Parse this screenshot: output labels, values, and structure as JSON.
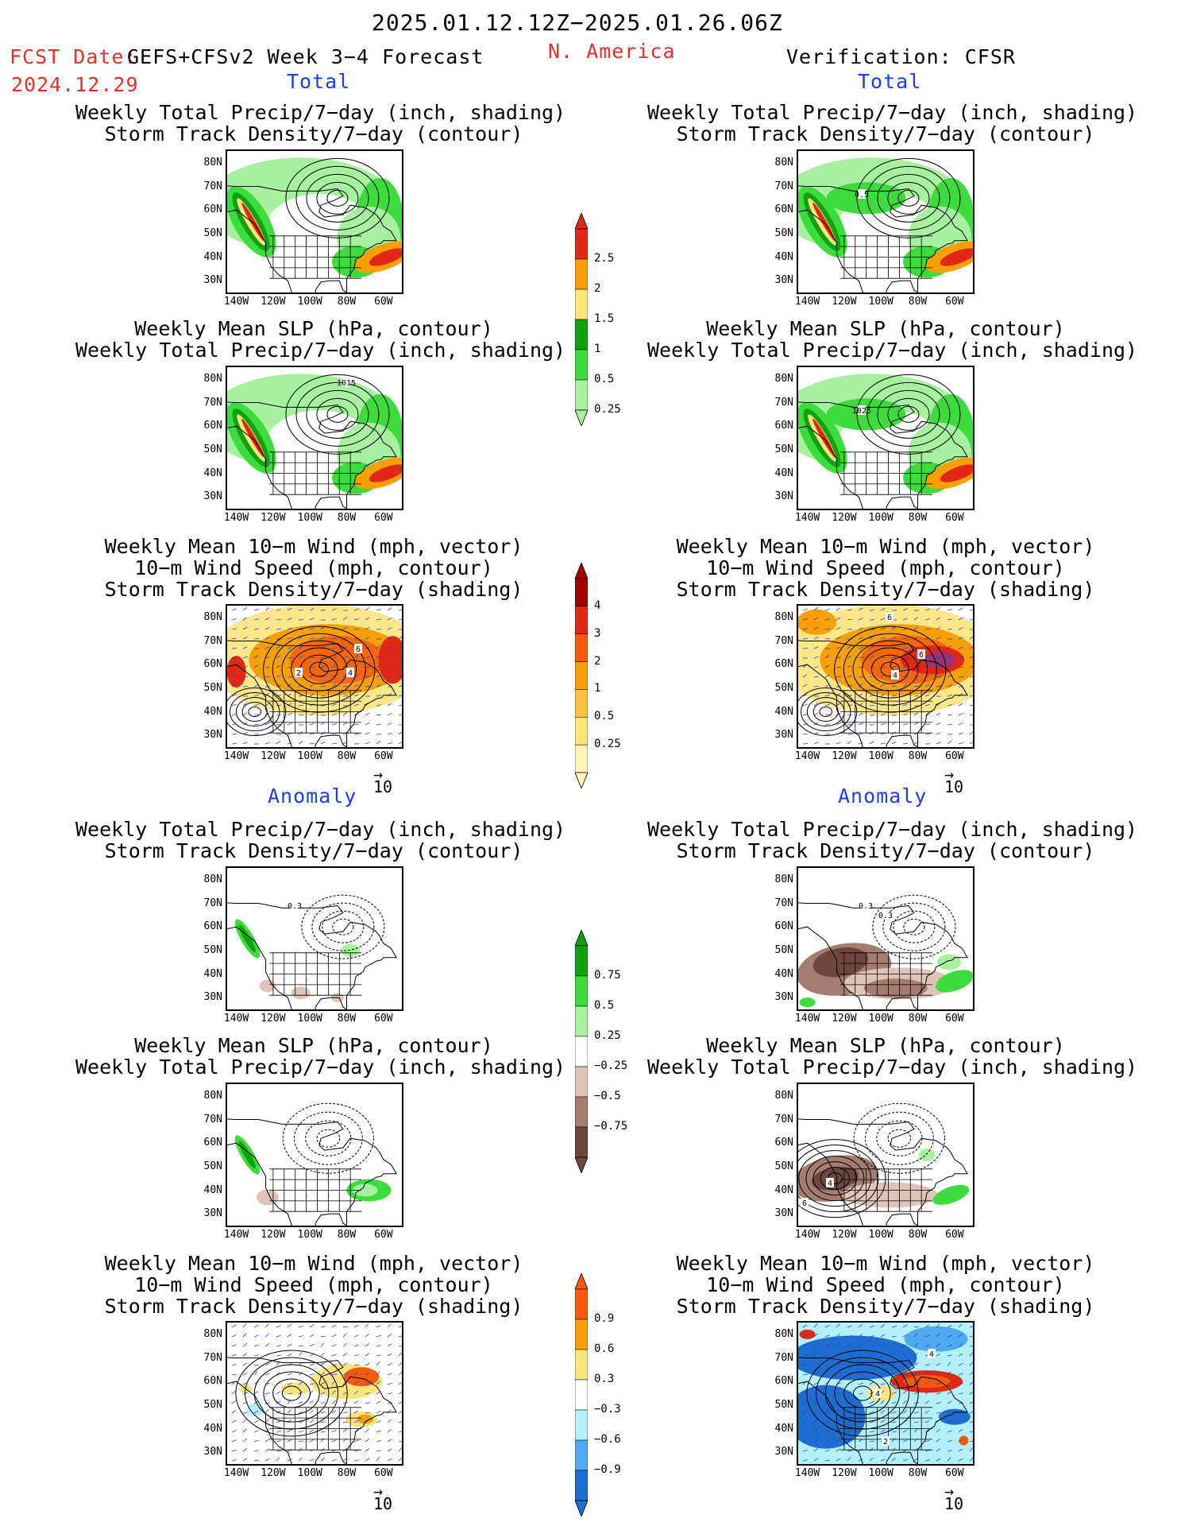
{
  "header": {
    "date_range": "2025.01.12.12Z−2025.01.26.06Z",
    "fcst_label": "FCST Date:",
    "model": "GEFS+CFSv2 Week 3−4 Forecast",
    "region": "N. America",
    "verification": "Verification: CFSR",
    "fcst_date": "2024.12.29"
  },
  "sections": {
    "total": "Total",
    "anomaly": "Anomaly"
  },
  "titles": {
    "precip_storm": [
      "Weekly Total Precip/7−day (inch, shading)",
      "Storm Track Density/7−day (contour)"
    ],
    "slp_precip": [
      "Weekly Mean SLP (hPa, contour)",
      "Weekly Total Precip/7−day (inch, shading)"
    ],
    "wind": [
      "Weekly Mean 10−m Wind (mph, vector)",
      "10−m Wind Speed (mph, contour)",
      "Storm Track Density/7−day (shading)"
    ]
  },
  "axes": {
    "lat": [
      "80N",
      "70N",
      "60N",
      "50N",
      "40N",
      "30N"
    ],
    "lon": [
      "140W",
      "120W",
      "100W",
      "80W",
      "60W"
    ]
  },
  "vector_ref": "10",
  "contour_labels": {
    "verif_total_precip": "0.5",
    "fcst_total_slp": "1015",
    "verif_total_slp": "1025",
    "fcst_total_wind": [
      "6",
      "2",
      "4"
    ],
    "verif_total_wind": [
      "6",
      "6",
      "4"
    ],
    "fcst_anom_precip": "0.3",
    "verif_anom_precip": [
      "0.3",
      "0.3"
    ],
    "verif_anom_slp": [
      "4",
      "6"
    ],
    "verif_anom_wind": [
      "4",
      "4",
      "2"
    ]
  },
  "colorbars": {
    "precip_total": {
      "labels": [
        "2.5",
        "2",
        "1.5",
        "1",
        "0.5",
        "0.25"
      ],
      "colors": [
        "#e02814",
        "#f8a000",
        "#fae47c",
        "#10a010",
        "#3cdc3c",
        "#a6f0a0"
      ]
    },
    "storm_total": {
      "labels": [
        "4",
        "3",
        "2",
        "1",
        "0.5",
        "0.25"
      ],
      "colors": [
        "#a00000",
        "#e02814",
        "#f85a0c",
        "#f8a000",
        "#f8c03c",
        "#fae47c",
        "#fff5b8"
      ]
    },
    "precip_anom": {
      "labels": [
        "0.75",
        "0.5",
        "0.25",
        "−0.25",
        "−0.5",
        "−0.75"
      ],
      "colors": [
        "#10a010",
        "#3cdc3c",
        "#a6f0a0",
        "#ffffff",
        "#e0c4b8",
        "#a47c70",
        "#6e463c"
      ]
    },
    "storm_anom": {
      "labels": [
        "0.9",
        "0.6",
        "0.3",
        "−0.3",
        "−0.6",
        "−0.9"
      ],
      "colors": [
        "#f85a0c",
        "#f8a000",
        "#fae47c",
        "#ffffff",
        "#b4f0fa",
        "#50aaf0",
        "#1e6ed2"
      ]
    }
  }
}
